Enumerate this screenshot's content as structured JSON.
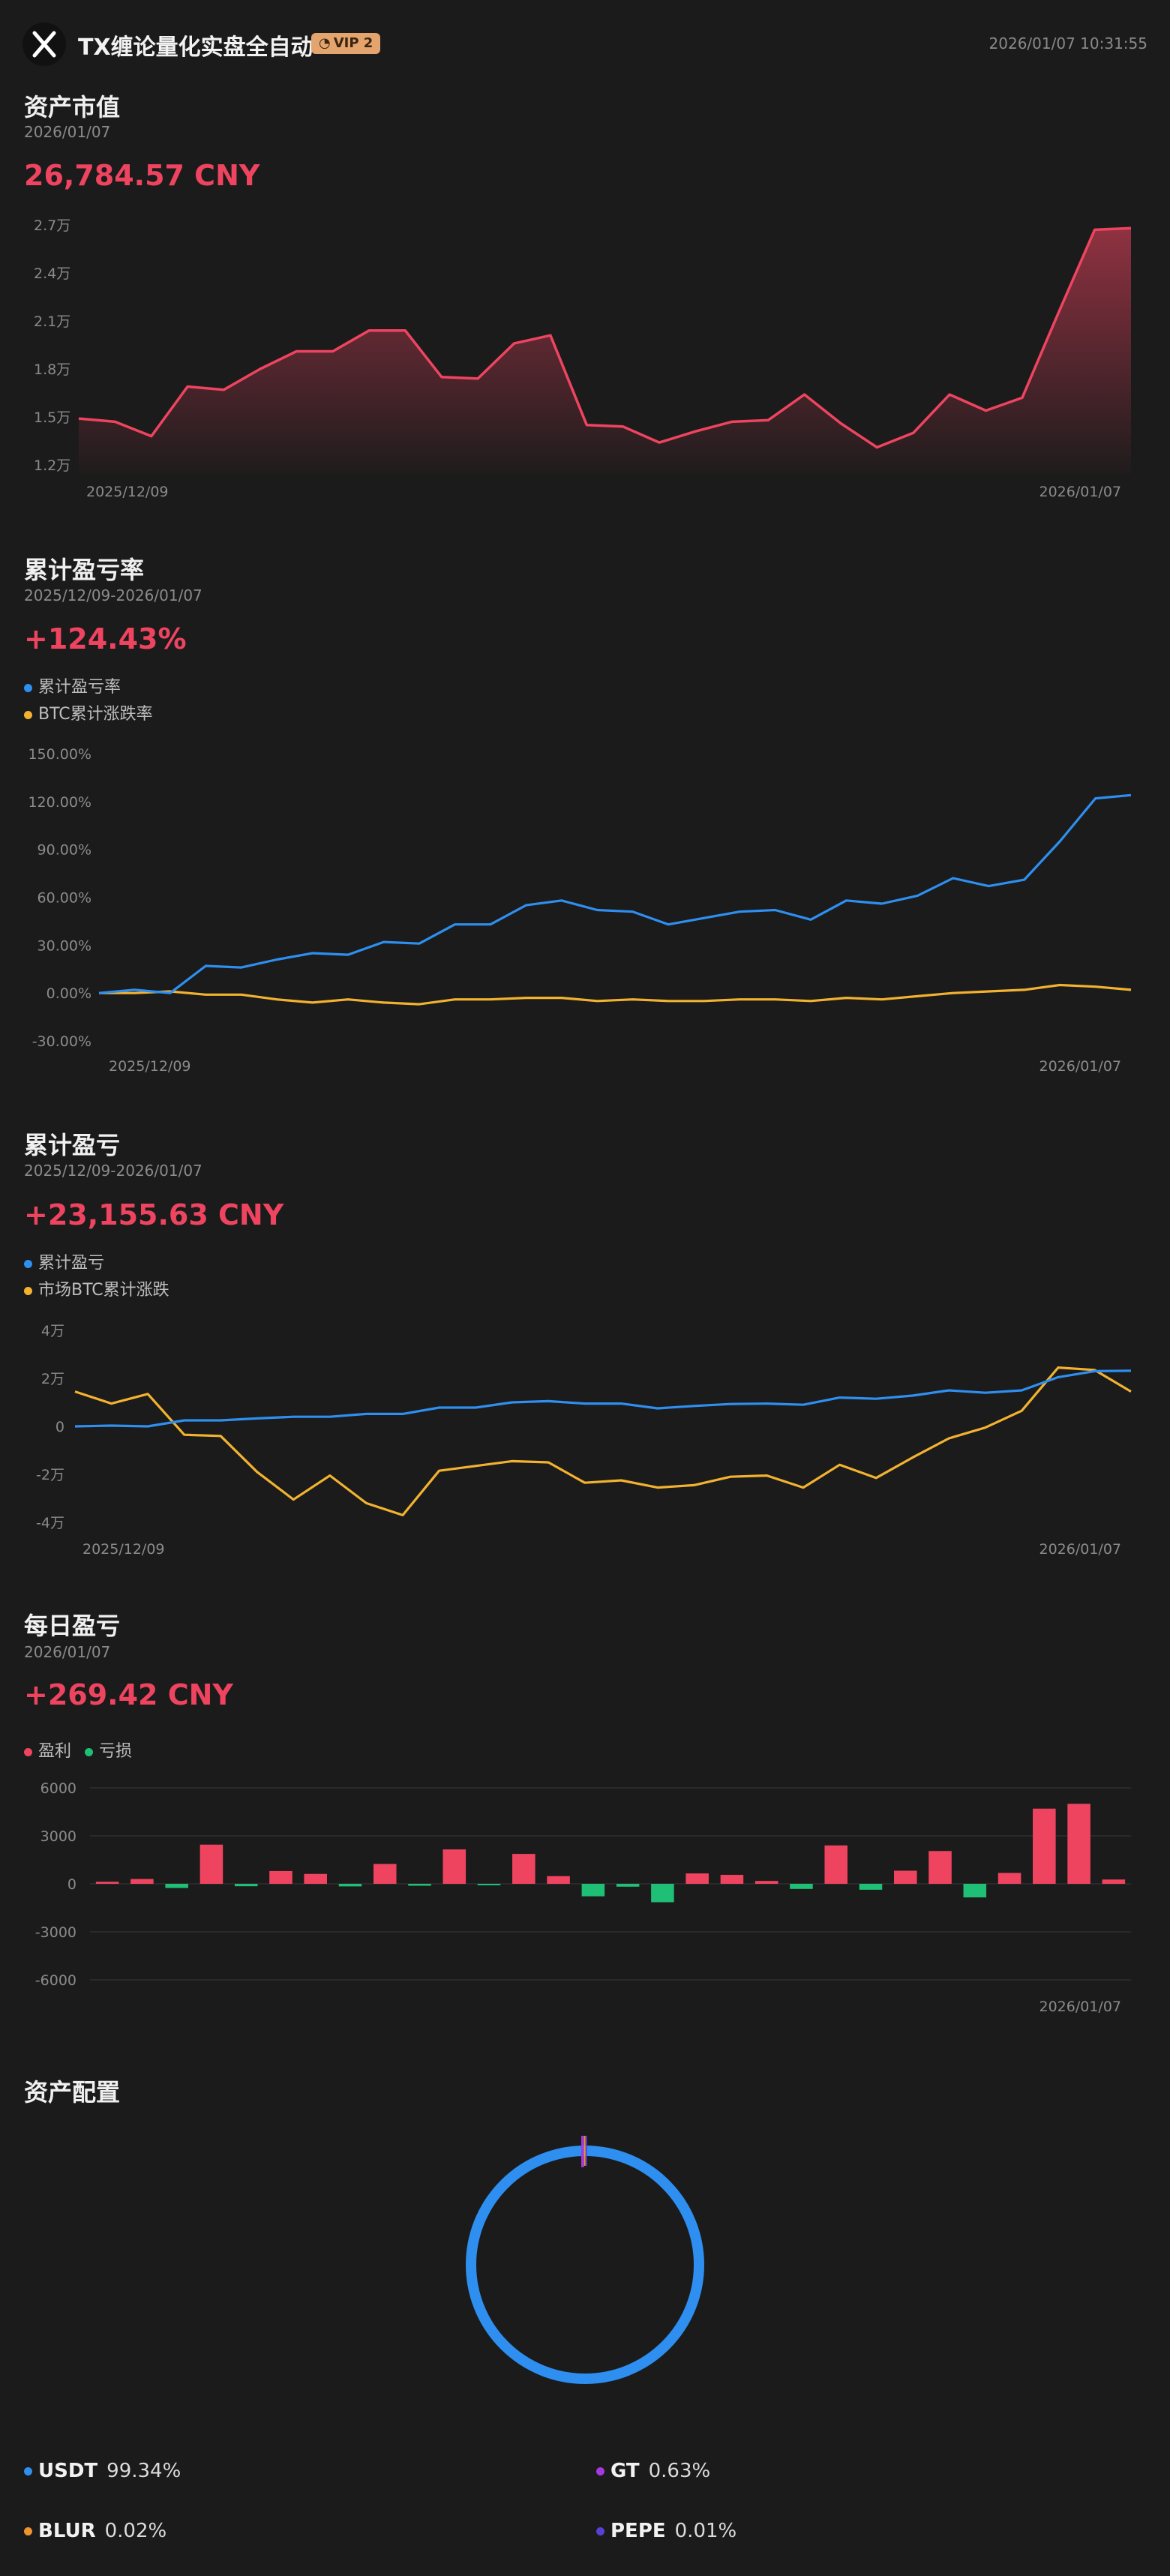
{
  "header": {
    "title": "TX缠论量化实盘全自动",
    "vip_label": "VIP 2",
    "timestamp": "2026/01/07 10:31:55"
  },
  "asset_value": {
    "title": "资产市值",
    "date": "2026/01/07",
    "value": "26,784.57 CNY",
    "x_start": "2025/12/09",
    "x_end": "2026/01/07",
    "y_ticks": [
      "2.7万",
      "2.4万",
      "2.1万",
      "1.8万",
      "1.5万",
      "1.2万"
    ],
    "color": "#ef4460"
  },
  "cum_rate": {
    "title": "累计盈亏率",
    "date_range": "2025/12/09-2026/01/07",
    "value": "+124.43%",
    "legend": [
      {
        "label": "累计盈亏率",
        "color": "#2e8ff0"
      },
      {
        "label": "BTC累计涨跌率",
        "color": "#f2b230"
      }
    ],
    "y_ticks": [
      "150.00%",
      "120.00%",
      "90.00%",
      "60.00%",
      "30.00%",
      "0.00%",
      "-30.00%"
    ],
    "x_start": "2025/12/09",
    "x_end": "2026/01/07"
  },
  "cum_pnl": {
    "title": "累计盈亏",
    "date_range": "2025/12/09-2026/01/07",
    "value": "+23,155.63 CNY",
    "legend": [
      {
        "label": "累计盈亏",
        "color": "#2e8ff0"
      },
      {
        "label": "市场BTC累计涨跌",
        "color": "#f2b230"
      }
    ],
    "y_ticks": [
      "4万",
      "2万",
      "0",
      "-2万",
      "-4万"
    ],
    "x_start": "2025/12/09",
    "x_end": "2026/01/07"
  },
  "daily_pnl": {
    "title": "每日盈亏",
    "date": "2026/01/07",
    "value": "+269.42 CNY",
    "legend": [
      {
        "label": "盈利",
        "color": "#ef4460"
      },
      {
        "label": "亏损",
        "color": "#1fbf75"
      }
    ],
    "y_ticks": [
      "6000",
      "3000",
      "0",
      "-3000",
      "-6000"
    ],
    "x_end": "2026/01/07"
  },
  "allocation": {
    "title": "资产配置",
    "items": [
      {
        "name": "USDT",
        "pct": "99.34%",
        "color": "#2e8ff0"
      },
      {
        "name": "GT",
        "pct": "0.63%",
        "color": "#a638e0"
      },
      {
        "name": "BLUR",
        "pct": "0.02%",
        "color": "#f0922e"
      },
      {
        "name": "PEPE",
        "pct": "0.01%",
        "color": "#5a3fd6"
      }
    ]
  },
  "chart_data": [
    {
      "type": "area",
      "title": "资产市值",
      "x_start": "2025/12/09",
      "x_end": "2026/01/07",
      "unit": "万",
      "ylim": [
        1.2,
        2.7
      ],
      "series": [
        {
          "values": [
            1.49,
            1.47,
            1.38,
            1.69,
            1.67,
            1.8,
            1.91,
            1.91,
            2.04,
            2.04,
            1.75,
            1.74,
            1.96,
            2.01,
            1.45,
            1.44,
            1.34,
            1.41,
            1.47,
            1.48,
            1.64,
            1.46,
            1.31,
            1.4,
            1.64,
            1.54,
            1.62,
            2.15,
            2.67,
            2.68
          ]
        }
      ]
    },
    {
      "type": "line",
      "title": "累计盈亏率",
      "x_start": "2025/12/09",
      "x_end": "2026/01/07",
      "ylim": [
        -30,
        150
      ],
      "series": [
        {
          "name": "累计盈亏率",
          "values": [
            0,
            2,
            0,
            17,
            16,
            21,
            25,
            24,
            32,
            31,
            43,
            43,
            55,
            58,
            52,
            51,
            43,
            47,
            51,
            52,
            46,
            58,
            56,
            61,
            72,
            67,
            71,
            95,
            122,
            124
          ]
        },
        {
          "name": "BTC累计涨跌率",
          "values": [
            0,
            0,
            1,
            -1,
            -1,
            -4,
            -6,
            -4,
            -6,
            -7,
            -4,
            -4,
            -3,
            -3,
            -5,
            -4,
            -5,
            -5,
            -4,
            -4,
            -5,
            -3,
            -4,
            -2,
            0,
            1,
            2,
            5,
            4,
            2
          ]
        }
      ]
    },
    {
      "type": "line",
      "title": "累计盈亏",
      "x_start": "2025/12/09",
      "x_end": "2026/01/07",
      "unit": "万",
      "ylim": [
        -4,
        4
      ],
      "series": [
        {
          "name": "累计盈亏",
          "values": [
            0,
            0.03,
            0,
            0.25,
            0.25,
            0.33,
            0.4,
            0.4,
            0.52,
            0.52,
            0.78,
            0.78,
            1.0,
            1.05,
            0.95,
            0.95,
            0.75,
            0.85,
            0.93,
            0.95,
            0.9,
            1.2,
            1.15,
            1.28,
            1.5,
            1.4,
            1.5,
            2.05,
            2.3,
            2.32
          ]
        },
        {
          "name": "市场BTC累计涨跌",
          "values": [
            1.45,
            0.95,
            1.35,
            -0.35,
            -0.4,
            -1.9,
            -3.05,
            -2.05,
            -3.2,
            -3.7,
            -1.85,
            -1.65,
            -1.45,
            -1.5,
            -2.35,
            -2.25,
            -2.55,
            -2.45,
            -2.1,
            -2.05,
            -2.55,
            -1.6,
            -2.15,
            -1.3,
            -0.5,
            -0.05,
            0.65,
            2.45,
            2.35,
            1.45
          ]
        }
      ]
    },
    {
      "type": "bar",
      "title": "每日盈亏",
      "x_end": "2026/01/07",
      "ylim": [
        -6000,
        6000
      ],
      "series": [
        {
          "values": [
            130,
            300,
            -260,
            2450,
            -150,
            800,
            620,
            -160,
            1240,
            -120,
            2150,
            -60,
            1870,
            480,
            -780,
            -180,
            -1150,
            650,
            560,
            180,
            -320,
            2400,
            -370,
            820,
            2050,
            -850,
            680,
            4700,
            5000,
            269
          ]
        }
      ]
    }
  ]
}
